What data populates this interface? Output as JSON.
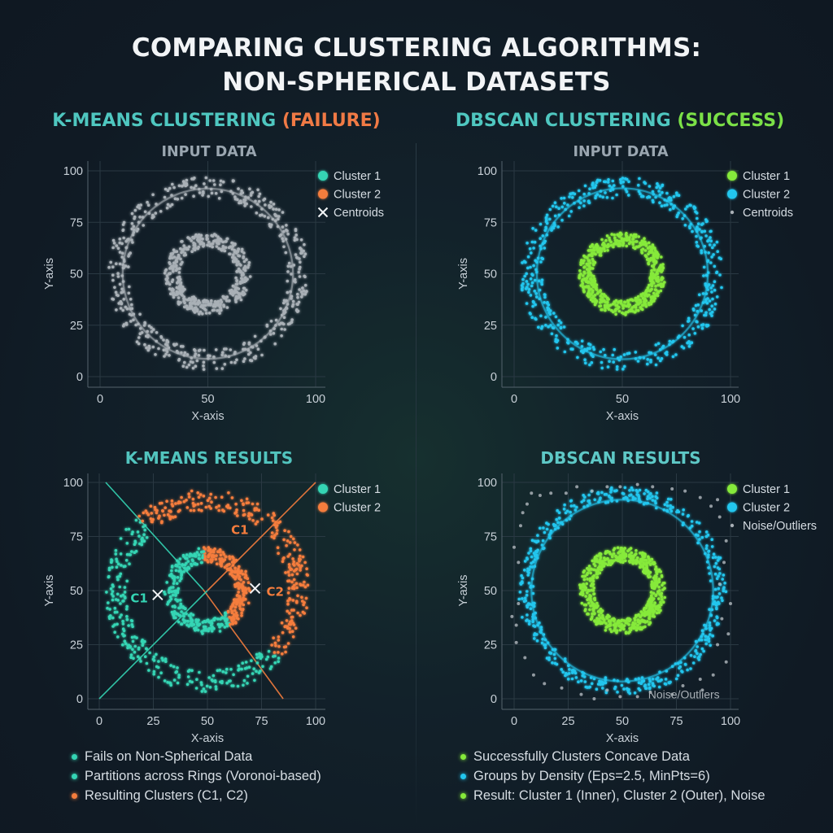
{
  "title": {
    "line1": "COMPARING CLUSTERING ALGORITHMS:",
    "line2": "NON-SPHERICAL DATASETS"
  },
  "left_header": {
    "prefix": "K-MEANS CLUSTERING",
    "status": "(FAILURE)"
  },
  "right_header": {
    "prefix": "DBSCAN CLUSTERING",
    "status": "(SUCCESS)"
  },
  "colors": {
    "gray": "#a9b0b6",
    "teal": "#34d5b4",
    "orange": "#f57d3d",
    "green": "#86ea3a",
    "cyan": "#22c6ee",
    "white": "#f2f4f6"
  },
  "chart_data": [
    {
      "id": "kmeans-input",
      "type": "scatter",
      "title": "INPUT DATA",
      "xlabel": "X-axis",
      "ylabel": "Y-axis",
      "xlim": [
        0,
        100
      ],
      "ylim": [
        0,
        100
      ],
      "xticks": [
        0,
        50,
        100
      ],
      "yticks": [
        0,
        25,
        50,
        75,
        100
      ],
      "grid": true,
      "legend_position": "top-right",
      "legend": [
        {
          "label": "Cluster 1",
          "color": "#34d5b4",
          "marker": "dot"
        },
        {
          "label": "Cluster 2",
          "color": "#f57d3d",
          "marker": "dot"
        },
        {
          "label": "Centroids",
          "color": "#f2f4f6",
          "marker": "x"
        }
      ],
      "rings": [
        {
          "role": "inner",
          "center": [
            50,
            50
          ],
          "radius_range": [
            13,
            20
          ],
          "n": 420,
          "color": "gray"
        },
        {
          "role": "outer",
          "center": [
            50,
            50
          ],
          "radius_range": [
            37,
            47
          ],
          "n": 470,
          "color": "gray"
        }
      ]
    },
    {
      "id": "dbscan-input",
      "type": "scatter",
      "title": "INPUT DATA",
      "xlabel": "X-axis",
      "ylabel": "Y-axis",
      "xlim": [
        0,
        100
      ],
      "ylim": [
        0,
        100
      ],
      "xticks": [
        0,
        50,
        100
      ],
      "yticks": [
        0,
        25,
        50,
        75,
        100
      ],
      "grid": true,
      "legend_position": "top-right",
      "legend": [
        {
          "label": "Cluster 1",
          "color": "#86ea3a",
          "marker": "dot"
        },
        {
          "label": "Cluster 2",
          "color": "#22c6ee",
          "marker": "dot"
        },
        {
          "label": "Centroids",
          "color": "#a9b0b6",
          "marker": "small-dot"
        }
      ],
      "rings": [
        {
          "role": "inner",
          "center": [
            50,
            50
          ],
          "radius_range": [
            13,
            20
          ],
          "n": 520,
          "color": "green"
        },
        {
          "role": "outer",
          "center": [
            50,
            50
          ],
          "radius_range": [
            37,
            47
          ],
          "n": 480,
          "color": "cyan"
        }
      ]
    },
    {
      "id": "kmeans-results",
      "type": "scatter",
      "title": "K-MEANS RESULTS",
      "xlabel": "X-axis",
      "ylabel": "Y-axis",
      "xlim": [
        0,
        100
      ],
      "ylim": [
        0,
        100
      ],
      "xticks": [
        0,
        25,
        50,
        75,
        100
      ],
      "yticks": [
        0,
        25,
        50,
        75,
        100
      ],
      "grid": true,
      "legend_position": "top-right",
      "legend": [
        {
          "label": "Cluster 1",
          "color": "#34d5b4",
          "marker": "dot"
        },
        {
          "label": "Cluster 2",
          "color": "#f57d3d",
          "marker": "dot"
        }
      ],
      "rings": [
        {
          "role": "inner",
          "center": [
            50,
            50
          ],
          "radius_range": [
            13,
            20
          ],
          "n": 440,
          "color": "split"
        },
        {
          "role": "outer",
          "center": [
            50,
            50
          ],
          "radius_range": [
            37,
            47
          ],
          "n": 520,
          "color": "split"
        }
      ],
      "boundaries": [
        {
          "from": [
            3,
            100
          ],
          "to": [
            85,
            0
          ],
          "color": "teal"
        },
        {
          "from": [
            0,
            0
          ],
          "to": [
            100,
            100
          ],
          "color": "teal-orange"
        }
      ],
      "centroids": [
        {
          "label": "C1",
          "x": 27,
          "y": 48,
          "color": "teal"
        },
        {
          "label": "C2",
          "x": 72,
          "y": 51,
          "color": "orange"
        }
      ],
      "annotations": [
        {
          "text": "C1",
          "x": 65,
          "y": 78,
          "color": "orange"
        }
      ]
    },
    {
      "id": "dbscan-results",
      "type": "scatter",
      "title": "DBSCAN RESULTS",
      "xlabel": "X-axis",
      "ylabel": "Y-axis",
      "xlim": [
        0,
        100
      ],
      "ylim": [
        0,
        100
      ],
      "xticks": [
        0,
        25,
        50,
        75,
        100
      ],
      "yticks": [
        0,
        25,
        50,
        75,
        100
      ],
      "grid": true,
      "legend_position": "top-right",
      "legend": [
        {
          "label": "Cluster 1",
          "color": "#86ea3a",
          "marker": "dot"
        },
        {
          "label": "Cluster 2",
          "color": "#22c6ee",
          "marker": "dot"
        },
        {
          "label": "Noise/Outliers",
          "color": "#a9b0b6",
          "marker": "small-dot"
        }
      ],
      "rings": [
        {
          "role": "inner",
          "center": [
            50,
            50
          ],
          "radius_range": [
            13,
            20
          ],
          "n": 580,
          "color": "green"
        },
        {
          "role": "outer",
          "center": [
            50,
            50
          ],
          "radius_range": [
            41,
            48
          ],
          "n": 500,
          "color": "cyan"
        }
      ],
      "noise": [
        [
          8,
          95
        ],
        [
          6,
          90
        ],
        [
          12,
          94
        ],
        [
          17,
          95
        ],
        [
          24,
          95
        ],
        [
          29,
          98
        ],
        [
          36,
          96
        ],
        [
          43,
          98
        ],
        [
          49,
          98
        ],
        [
          57,
          99
        ],
        [
          64,
          98
        ],
        [
          73,
          97
        ],
        [
          79,
          96
        ],
        [
          86,
          93
        ],
        [
          94,
          92
        ],
        [
          91,
          89
        ],
        [
          95,
          84
        ],
        [
          98,
          73
        ],
        [
          97,
          63
        ],
        [
          95,
          53
        ],
        [
          100,
          44
        ],
        [
          96,
          37
        ],
        [
          99,
          30
        ],
        [
          94,
          25
        ],
        [
          98,
          17
        ],
        [
          92,
          11
        ],
        [
          86,
          9
        ],
        [
          87,
          4
        ],
        [
          78,
          6
        ],
        [
          73,
          2
        ],
        [
          63,
          3
        ],
        [
          57,
          1
        ],
        [
          49,
          1
        ],
        [
          43,
          4
        ],
        [
          37,
          0
        ],
        [
          31,
          2
        ],
        [
          22,
          5
        ],
        [
          14,
          7
        ],
        [
          9,
          11
        ],
        [
          5,
          19
        ],
        [
          1,
          26
        ],
        [
          1,
          34
        ],
        [
          -1,
          38
        ],
        [
          2,
          44
        ],
        [
          0,
          70
        ],
        [
          3,
          80
        ],
        [
          4,
          86
        ],
        [
          2,
          63
        ]
      ],
      "annotations": [
        {
          "text": "Noise/Outliers",
          "x": 95,
          "y": 2,
          "color": "gray"
        }
      ]
    }
  ],
  "bullets_left": [
    {
      "text": "Fails on Non-Spherical Data",
      "color": "#34d5b4"
    },
    {
      "text": "Partitions across Rings (Voronoi-based)",
      "color": "#34d5b4"
    },
    {
      "text": "Resulting Clusters (C1, C2)",
      "color": "#f57d3d"
    }
  ],
  "bullets_right": [
    {
      "text": "Successfully Clusters Concave Data",
      "color": "#86ea3a"
    },
    {
      "text": "Groups by Density (Eps=2.5, MinPts=6)",
      "color": "#22c6ee"
    },
    {
      "text": "Result: Cluster 1 (Inner), Cluster 2 (Outer), Noise",
      "color": "#86ea3a"
    }
  ]
}
